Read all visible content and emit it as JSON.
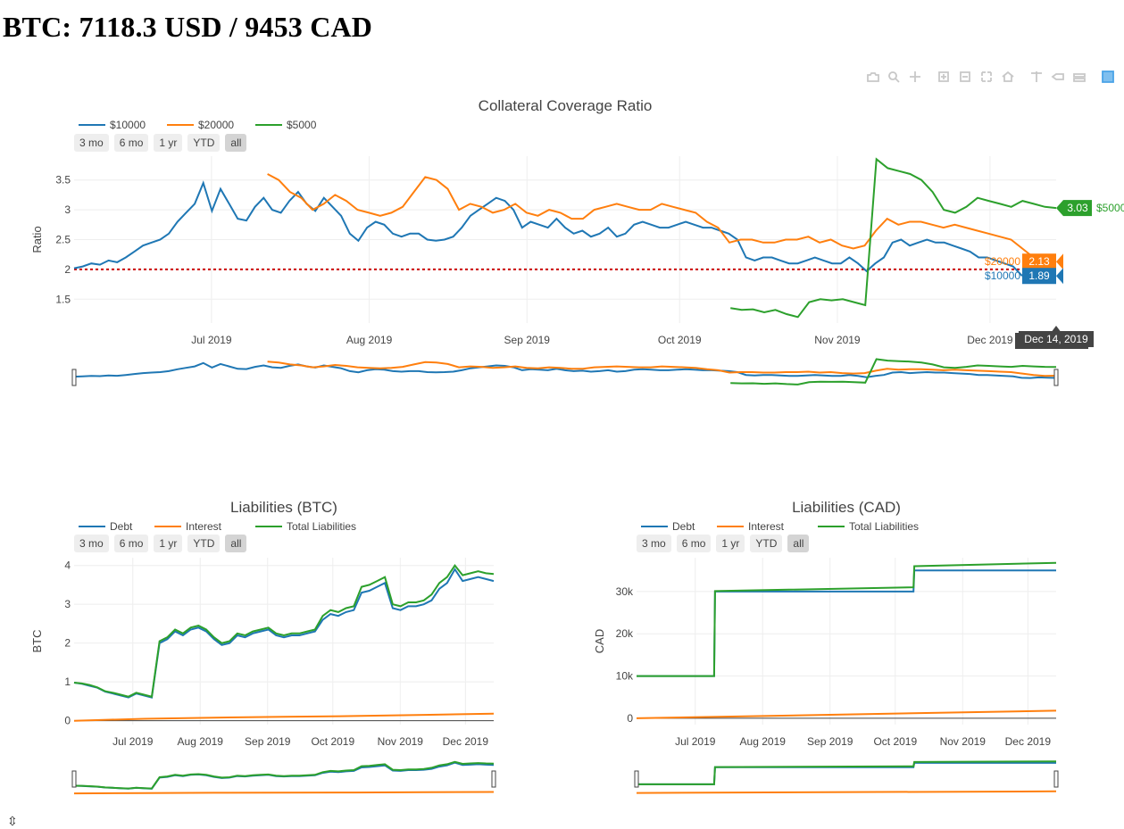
{
  "page": {
    "title": "BTC: 7118.3 USD / 9453 CAD"
  },
  "modebar": {
    "buttons": [
      {
        "icon": "camera-icon"
      },
      {
        "icon": "zoom-icon"
      },
      {
        "icon": "pan-icon"
      },
      {
        "icon": "zoom-in-icon"
      },
      {
        "icon": "zoom-out-icon"
      },
      {
        "icon": "autoscale-icon"
      },
      {
        "icon": "home-icon"
      },
      {
        "icon": "spike-lines-icon"
      },
      {
        "icon": "hover-closest-icon"
      },
      {
        "icon": "hover-compare-icon"
      },
      {
        "icon": "plotly-logo-icon"
      }
    ]
  },
  "range_buttons": [
    "3 mo",
    "6 mo",
    "1 yr",
    "YTD",
    "all"
  ],
  "active_range": "all",
  "colors": {
    "blue": "#1f77b4",
    "orange": "#ff7f0e",
    "green": "#2ca02c",
    "threshold": "#cc0000"
  },
  "chart_data": [
    {
      "type": "line",
      "title": "Collateral Coverage Ratio",
      "ylabel": "Ratio",
      "xlabel": "",
      "x_ticks": [
        "Jul 2019",
        "Aug 2019",
        "Sep 2019",
        "Oct 2019",
        "Nov 2019",
        "Dec 2019"
      ],
      "y_ticks": [
        "1.5",
        "2",
        "2.5",
        "3",
        "3.5"
      ],
      "ylim": [
        1.1,
        3.9
      ],
      "x_range": [
        "2019-06-04",
        "2019-12-14"
      ],
      "threshold": 2,
      "hover": {
        "date_label": "Dec 14, 2019",
        "items": [
          {
            "series": "$5000",
            "value": "3.03"
          },
          {
            "series": "$20000",
            "value": "2.13"
          },
          {
            "series": "$10000",
            "value": "1.89"
          }
        ]
      },
      "series": [
        {
          "name": "$10000",
          "color": "#1f77b4",
          "x_start": "2019-06-04",
          "x_end": "2019-12-14",
          "values": [
            2.02,
            2.05,
            2.1,
            2.08,
            2.15,
            2.12,
            2.2,
            2.3,
            2.4,
            2.45,
            2.5,
            2.6,
            2.8,
            2.95,
            3.1,
            3.45,
            2.98,
            3.35,
            3.1,
            2.85,
            2.82,
            3.05,
            3.2,
            3.0,
            2.95,
            3.15,
            3.3,
            3.1,
            2.98,
            3.2,
            3.05,
            2.9,
            2.6,
            2.48,
            2.7,
            2.8,
            2.75,
            2.6,
            2.55,
            2.6,
            2.6,
            2.5,
            2.48,
            2.5,
            2.55,
            2.7,
            2.9,
            3.0,
            3.1,
            3.2,
            3.15,
            3.0,
            2.7,
            2.8,
            2.75,
            2.7,
            2.85,
            2.7,
            2.6,
            2.65,
            2.55,
            2.6,
            2.7,
            2.55,
            2.6,
            2.75,
            2.8,
            2.75,
            2.7,
            2.7,
            2.75,
            2.8,
            2.75,
            2.7,
            2.7,
            2.65,
            2.6,
            2.5,
            2.2,
            2.15,
            2.2,
            2.2,
            2.15,
            2.1,
            2.1,
            2.15,
            2.2,
            2.15,
            2.1,
            2.1,
            2.2,
            2.1,
            1.97,
            2.1,
            2.2,
            2.45,
            2.5,
            2.4,
            2.45,
            2.5,
            2.45,
            2.45,
            2.4,
            2.35,
            2.3,
            2.2,
            2.2,
            2.15,
            2.1,
            2.05,
            1.9,
            1.88,
            1.95,
            1.92,
            1.89
          ]
        },
        {
          "name": "$20000",
          "color": "#ff7f0e",
          "x_start": "2019-07-12",
          "x_end": "2019-12-14",
          "values": [
            3.6,
            3.5,
            3.3,
            3.2,
            3.0,
            3.1,
            3.25,
            3.15,
            3.0,
            2.95,
            2.9,
            2.95,
            3.05,
            3.3,
            3.55,
            3.5,
            3.35,
            3.0,
            3.1,
            3.05,
            2.95,
            3.0,
            3.1,
            2.95,
            2.9,
            3.0,
            2.95,
            2.85,
            2.85,
            3.0,
            3.05,
            3.1,
            3.05,
            3.0,
            3.0,
            3.1,
            3.05,
            3.0,
            2.95,
            2.8,
            2.7,
            2.45,
            2.5,
            2.5,
            2.45,
            2.45,
            2.5,
            2.5,
            2.55,
            2.45,
            2.5,
            2.4,
            2.35,
            2.4,
            2.65,
            2.85,
            2.75,
            2.8,
            2.8,
            2.75,
            2.7,
            2.75,
            2.7,
            2.65,
            2.6,
            2.55,
            2.5,
            2.35,
            2.2,
            2.1,
            2.13
          ]
        },
        {
          "name": "$5000",
          "color": "#2ca02c",
          "x_start": "2019-10-11",
          "x_end": "2019-12-14",
          "values": [
            1.35,
            1.32,
            1.33,
            1.28,
            1.32,
            1.25,
            1.2,
            1.45,
            1.5,
            1.48,
            1.5,
            1.45,
            1.4,
            3.85,
            3.7,
            3.65,
            3.6,
            3.5,
            3.3,
            3.0,
            2.95,
            3.05,
            3.2,
            3.15,
            3.1,
            3.05,
            3.15,
            3.1,
            3.05,
            3.03
          ]
        }
      ]
    },
    {
      "type": "line",
      "title": "Liabilities (BTC)",
      "ylabel": "BTC",
      "xlabel": "",
      "x_ticks": [
        "Jul 2019",
        "Aug 2019",
        "Sep 2019",
        "Oct 2019",
        "Nov 2019",
        "Dec 2019"
      ],
      "y_ticks": [
        "0",
        "1",
        "2",
        "3",
        "4"
      ],
      "ylim": [
        -0.1,
        4.2
      ],
      "x_range": [
        "2019-06-04",
        "2019-12-14"
      ],
      "series": [
        {
          "name": "Debt",
          "color": "#1f77b4",
          "x_start": "2019-06-04",
          "x_end": "2019-12-14",
          "values": [
            0.98,
            0.95,
            0.9,
            0.85,
            0.75,
            0.7,
            0.65,
            0.6,
            0.7,
            0.65,
            0.6,
            2.0,
            2.1,
            2.3,
            2.2,
            2.35,
            2.4,
            2.3,
            2.1,
            1.95,
            2.0,
            2.2,
            2.15,
            2.25,
            2.3,
            2.35,
            2.2,
            2.15,
            2.2,
            2.2,
            2.25,
            2.3,
            2.6,
            2.75,
            2.7,
            2.8,
            2.85,
            3.3,
            3.35,
            3.45,
            3.55,
            2.9,
            2.85,
            2.95,
            2.95,
            3.0,
            3.1,
            3.4,
            3.55,
            3.9,
            3.6,
            3.65,
            3.7,
            3.65,
            3.6
          ]
        },
        {
          "name": "Interest",
          "color": "#ff7f0e",
          "x_start": "2019-06-04",
          "x_end": "2019-12-14",
          "values": [
            0.0,
            0.05,
            0.08,
            0.1,
            0.12,
            0.15,
            0.18
          ]
        },
        {
          "name": "Total Liabilities",
          "color": "#2ca02c",
          "x_start": "2019-06-04",
          "x_end": "2019-12-14",
          "values": [
            0.98,
            0.96,
            0.92,
            0.86,
            0.76,
            0.72,
            0.67,
            0.62,
            0.72,
            0.67,
            0.62,
            2.05,
            2.15,
            2.35,
            2.25,
            2.4,
            2.45,
            2.35,
            2.15,
            2.0,
            2.05,
            2.25,
            2.2,
            2.3,
            2.35,
            2.4,
            2.25,
            2.2,
            2.25,
            2.25,
            2.3,
            2.35,
            2.7,
            2.85,
            2.8,
            2.9,
            2.95,
            3.45,
            3.5,
            3.6,
            3.7,
            3.0,
            2.95,
            3.05,
            3.05,
            3.1,
            3.25,
            3.55,
            3.7,
            4.0,
            3.75,
            3.8,
            3.85,
            3.8,
            3.78
          ]
        }
      ]
    },
    {
      "type": "line",
      "title": "Liabilities (CAD)",
      "ylabel": "CAD",
      "xlabel": "",
      "x_ticks": [
        "Jul 2019",
        "Aug 2019",
        "Sep 2019",
        "Oct 2019",
        "Nov 2019",
        "Dec 2019"
      ],
      "y_ticks": [
        "0",
        "10k",
        "20k",
        "30k"
      ],
      "ylim": [
        -1500,
        38000
      ],
      "x_range": [
        "2019-06-04",
        "2019-12-14"
      ],
      "series": [
        {
          "name": "Debt",
          "color": "#1f77b4",
          "x_start": "2019-06-04",
          "x_end": "2019-12-14",
          "steps": [
            [
              0,
              10000
            ],
            [
              0.185,
              10000
            ],
            [
              0.187,
              30000
            ],
            [
              0.66,
              30000
            ],
            [
              0.662,
              35000
            ],
            [
              1,
              35000
            ]
          ]
        },
        {
          "name": "Interest",
          "color": "#ff7f0e",
          "x_start": "2019-06-04",
          "x_end": "2019-12-14",
          "steps": [
            [
              0,
              0
            ],
            [
              1,
              1800
            ]
          ]
        },
        {
          "name": "Total Liabilities",
          "color": "#2ca02c",
          "x_start": "2019-06-04",
          "x_end": "2019-12-14",
          "steps": [
            [
              0,
              10000
            ],
            [
              0.185,
              10000
            ],
            [
              0.187,
              30100
            ],
            [
              0.66,
              31000
            ],
            [
              0.662,
              36000
            ],
            [
              1,
              36800
            ]
          ]
        }
      ]
    }
  ]
}
